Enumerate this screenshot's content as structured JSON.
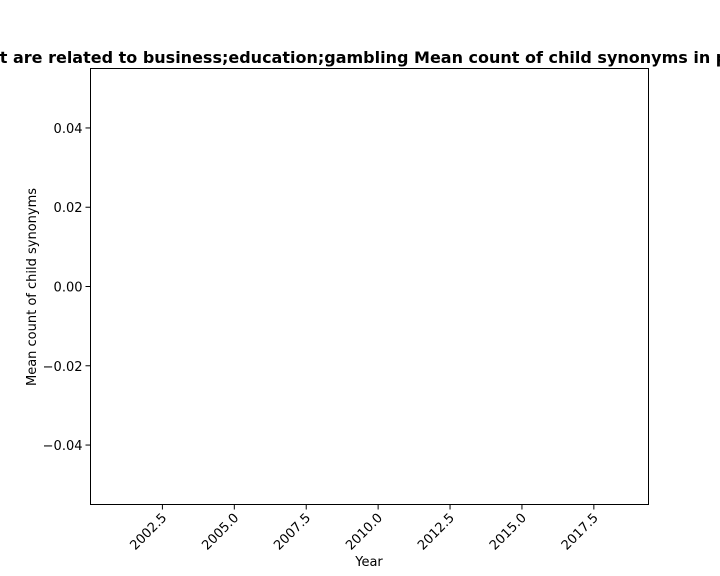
{
  "chart_data": {
    "type": "line",
    "title": "Websites that are related to business;education;gambling Mean count of child synonyms in privacy policies",
    "xlabel": "Year",
    "ylabel": "Mean count of child synonyms",
    "xlim": [
      2000.0,
      2019.4
    ],
    "ylim": [
      -0.055,
      0.055
    ],
    "x_ticks": [
      2002.5,
      2005.0,
      2007.5,
      2010.0,
      2012.5,
      2015.0,
      2017.5
    ],
    "x_tick_labels": [
      "2002.5",
      "2005.0",
      "2007.5",
      "2010.0",
      "2012.5",
      "2015.0",
      "2017.5"
    ],
    "y_ticks": [
      -0.04,
      -0.02,
      0.0,
      0.02,
      0.04
    ],
    "y_tick_labels": [
      "−0.04",
      "−0.02",
      "0.00",
      "0.02",
      "0.04"
    ],
    "series": [],
    "grid": false,
    "legend": "none"
  }
}
